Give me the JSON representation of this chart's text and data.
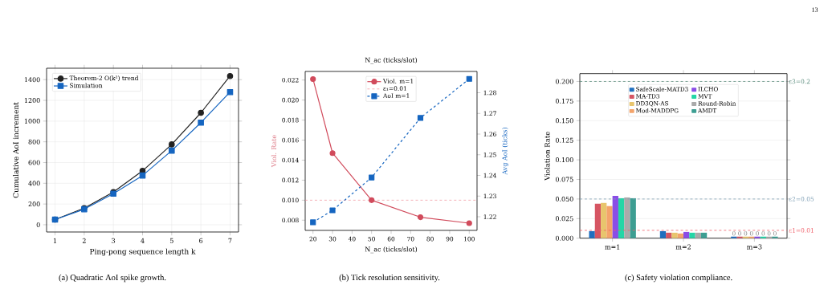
{
  "chart_data": [
    {
      "type": "line",
      "xlabel": "Ping-pong sequence length k",
      "ylabel": "Cumulative AoI increment",
      "x": [
        1,
        2,
        3,
        4,
        5,
        6,
        7
      ],
      "series": [
        {
          "name": "Theorem-2 O(k²) trend",
          "color": "#222222",
          "marker": "circle",
          "values": [
            50,
            160,
            315,
            520,
            775,
            1080,
            1435
          ]
        },
        {
          "name": "Simulation",
          "color": "#1565c0",
          "marker": "square",
          "values": [
            50,
            150,
            300,
            475,
            715,
            985,
            1280
          ]
        }
      ],
      "xlim": [
        0.71,
        7.29
      ],
      "ylim": [
        -70,
        1510
      ],
      "xticks": [
        1,
        2,
        3,
        4,
        5,
        6,
        7
      ],
      "yticks": [
        0,
        200,
        400,
        600,
        800,
        1000,
        1200,
        1400
      ],
      "grid": true,
      "legend": "top left",
      "annotations": [
        "(a) Quadratic AoI spike growth."
      ]
    },
    {
      "type": "line",
      "title": "N_ac (ticks/slot)",
      "xlabel": "N_ac (ticks/slot)",
      "ylabel": "Viol. Rate",
      "y2label": "Avg AoI (ticks)",
      "x": [
        20,
        30,
        50,
        75,
        100
      ],
      "series": [
        {
          "name": "Viol. m=1",
          "color": "#d14b5c",
          "marker": "circle",
          "line_style": "solid",
          "values": [
            0.0221,
            0.0147,
            0.01,
            0.0083,
            0.0077
          ]
        },
        {
          "name": "AoI m=1",
          "color": "#1565c0",
          "marker": "square",
          "line_style": "dashed",
          "axis": "y2",
          "values": [
            1.2173,
            1.2231,
            1.239,
            1.2678,
            1.2867
          ]
        }
      ],
      "xlim": [
        16,
        104
      ],
      "ylim": [
        0.00698,
        0.02286
      ],
      "y2lim": [
        1.2134,
        1.2903
      ],
      "xticks": [
        20,
        30,
        40,
        50,
        60,
        70,
        80,
        90,
        100
      ],
      "yticks": [
        {
          "value": 0.008,
          "label": "0.008"
        },
        {
          "value": 0.01,
          "label": "0.010"
        },
        {
          "value": 0.012,
          "label": "0.012"
        },
        {
          "value": 0.014,
          "label": "0.014"
        },
        {
          "value": 0.016,
          "label": "0.016"
        },
        {
          "value": 0.018,
          "label": "0.018"
        },
        {
          "value": 0.02,
          "label": "0.020"
        },
        {
          "value": 0.022,
          "label": "0.022"
        }
      ],
      "y2ticks": [
        1.22,
        1.23,
        1.24,
        1.25,
        1.26,
        1.27,
        1.28
      ],
      "ref_lines": [
        {
          "axis": "y",
          "value": 0.01,
          "label": "ε₁=0.01",
          "color": "#f08c96",
          "line_style": "dashed"
        }
      ],
      "legend": "top",
      "annotations": [
        "(b) Tick resolution sensitivity."
      ]
    },
    {
      "type": "bar",
      "ylabel": "Violation Rate",
      "categories": [
        "m=1",
        "m=2",
        "m=3"
      ],
      "series": [
        {
          "name": "SafeScale-MATD3",
          "color": "#1f6fbf",
          "values": [
            0.009,
            0.009,
            0.002
          ],
          "value_labels": [
            null,
            null,
            "0"
          ]
        },
        {
          "name": "MA-TD3",
          "color": "#d65563",
          "values": [
            0.044,
            0.007,
            0.002
          ],
          "value_labels": [
            null,
            null,
            "0"
          ]
        },
        {
          "name": "DD3QN-AS",
          "color": "#e8c56d",
          "values": [
            0.045,
            0.007,
            0.002
          ],
          "value_labels": [
            null,
            null,
            "0"
          ]
        },
        {
          "name": "Mod-MADDPG",
          "color": "#f4a46b",
          "values": [
            0.041,
            0.006,
            0.002
          ],
          "value_labels": [
            null,
            null,
            "0"
          ]
        },
        {
          "name": "ILCHO",
          "color": "#8a4de6",
          "values": [
            0.054,
            0.008,
            0.002
          ],
          "value_labels": [
            null,
            null,
            "0"
          ]
        },
        {
          "name": "MVT",
          "color": "#24d6a6",
          "values": [
            0.051,
            0.007,
            0.002
          ],
          "value_labels": [
            null,
            null,
            "0"
          ]
        },
        {
          "name": "Round-Robin",
          "color": "#aaaaaa",
          "values": [
            0.052,
            0.007,
            0.002
          ],
          "value_labels": [
            null,
            null,
            "0"
          ]
        },
        {
          "name": "AMDT",
          "color": "#3d9e92",
          "values": [
            0.051,
            0.007,
            0.002
          ],
          "value_labels": [
            null,
            null,
            "0"
          ]
        }
      ],
      "ylim": [
        0,
        0.21
      ],
      "yticks": [
        {
          "value": 0,
          "label": "0.000"
        },
        {
          "value": 0.025,
          "label": "0.025"
        },
        {
          "value": 0.05,
          "label": "0.050"
        },
        {
          "value": 0.075,
          "label": "0.075"
        },
        {
          "value": 0.1,
          "label": "0.100"
        },
        {
          "value": 0.125,
          "label": "0.125"
        },
        {
          "value": 0.15,
          "label": "0.150"
        },
        {
          "value": 0.175,
          "label": "0.175"
        },
        {
          "value": 0.2,
          "label": "0.200"
        }
      ],
      "ref_lines": [
        {
          "axis": "y",
          "value": 0.01,
          "label": "ε1=0.01",
          "color": "#f0606a",
          "line_style": "dashed"
        },
        {
          "axis": "y",
          "value": 0.05,
          "label": "ε2=0.05",
          "color": "#7f9fb5",
          "line_style": "dashed"
        },
        {
          "axis": "y",
          "value": 0.2,
          "label": "ε3=0.2",
          "color": "#5f8f80",
          "line_style": "dashed"
        }
      ],
      "grid": "y",
      "legend": "top",
      "annotations": [
        "(c) Safety violation compliance.",
        "13"
      ]
    }
  ]
}
